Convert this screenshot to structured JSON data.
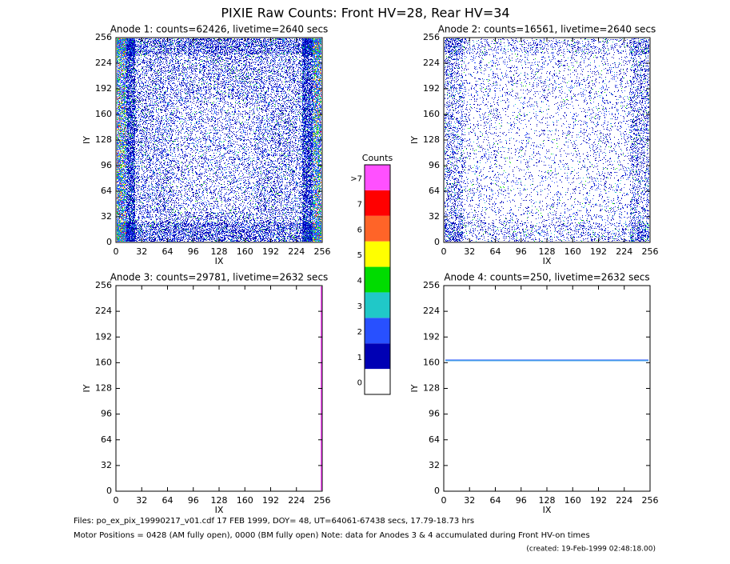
{
  "title": "PIXIE Raw Counts:  Front HV=28, Rear HV=34",
  "panels": [
    {
      "title": "Anode 1: counts=62426, livetime=2640 secs",
      "xlabel": "IX",
      "ylabel": "IY",
      "xlim": [
        0,
        256
      ],
      "ylim": [
        0,
        256
      ],
      "xticks": [
        0,
        32,
        64,
        96,
        128,
        160,
        192,
        224,
        256
      ],
      "yticks": [
        0,
        32,
        64,
        96,
        128,
        160,
        192,
        224,
        256
      ]
    },
    {
      "title": "Anode 2: counts=16561, livetime=2640 secs",
      "xlabel": "IX",
      "ylabel": "IY",
      "xlim": [
        0,
        256
      ],
      "ylim": [
        0,
        256
      ],
      "xticks": [
        0,
        32,
        64,
        96,
        128,
        160,
        192,
        224,
        256
      ],
      "yticks": [
        0,
        32,
        64,
        96,
        128,
        160,
        192,
        224,
        256
      ]
    },
    {
      "title": "Anode 3: counts=29781, livetime=2632 secs",
      "xlabel": "IX",
      "ylabel": "IY",
      "xlim": [
        0,
        256
      ],
      "ylim": [
        0,
        256
      ],
      "xticks": [
        0,
        32,
        64,
        96,
        128,
        160,
        192,
        224,
        256
      ],
      "yticks": [
        0,
        32,
        64,
        96,
        128,
        160,
        192,
        224,
        256
      ]
    },
    {
      "title": "Anode 4: counts=250, livetime=2632 secs",
      "xlabel": "IX",
      "ylabel": "IY",
      "xlim": [
        0,
        256
      ],
      "ylim": [
        0,
        256
      ],
      "xticks": [
        0,
        32,
        64,
        96,
        128,
        160,
        192,
        224,
        256
      ],
      "yticks": [
        0,
        32,
        64,
        96,
        128,
        160,
        192,
        224,
        256
      ]
    }
  ],
  "colorbar": {
    "title": "Counts",
    "labels": [
      "0",
      "1",
      "2",
      "3",
      "4",
      "5",
      "6",
      "7",
      ">7"
    ],
    "colors": [
      "#ffffff",
      "#0000b4",
      "#2850ff",
      "#20c8c8",
      "#00dc00",
      "#ffff00",
      "#ff6428",
      "#ff0000",
      "#ff50ff"
    ]
  },
  "footer": [
    "Files: po_ex_pix_19990217_v01.cdf    17 FEB 1999, DOY= 48, UT=64061-67438 secs, 17.79-18.73 hrs",
    "Motor Positions = 0428 (AM fully open), 0000 (BM fully open)    Note: data for Anodes 3 & 4 accumulated during Front HV-on times",
    "(created: 19-Feb-1999 02:48:18.00)"
  ]
}
